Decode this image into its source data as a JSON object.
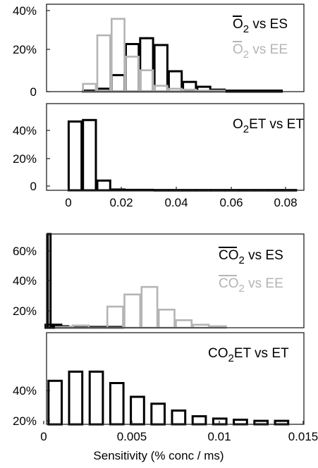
{
  "colors": {
    "black": "#000000",
    "gray": "#b4b4b4",
    "frame": "#222222"
  },
  "chart_data": [
    {
      "type": "bar",
      "ytick_labels": [
        "0",
        "20%",
        "40%"
      ],
      "ylim": [
        0,
        45
      ],
      "xlim": [
        -0.01,
        0.08
      ],
      "bin_width": 0.005,
      "show_xtick_labels": false,
      "series": [
        {
          "name": "O2 vs ES",
          "color": "black",
          "x": [
            0.005,
            0.01,
            0.015,
            0.02,
            0.025,
            0.03,
            0.035,
            0.04,
            0.045,
            0.05,
            0.055,
            0.06,
            0.065,
            0.07
          ],
          "values": [
            0.5,
            1.5,
            8.5,
            24.5,
            27.5,
            24,
            10.5,
            5,
            2.5,
            1,
            0.5,
            0.5,
            0.5,
            0.5
          ]
        },
        {
          "name": "O2 vs EE",
          "color": "gray",
          "x": [
            0.005,
            0.01,
            0.015,
            0.02,
            0.025,
            0.03,
            0.035,
            0.04,
            0.045,
            0.05
          ],
          "values": [
            4,
            29,
            37.5,
            18,
            11,
            3,
            1.5,
            1,
            0.5,
            0.5
          ]
        }
      ],
      "legend": [
        {
          "overbar": "O",
          "sub": "2",
          "rest": " vs ES",
          "color": "black"
        },
        {
          "overbar": "O",
          "sub": "2",
          "rest": " vs EE",
          "color": "gray"
        }
      ]
    },
    {
      "type": "bar",
      "ytick_labels": [
        "0",
        "20%",
        "40%"
      ],
      "ylim": [
        0,
        58
      ],
      "xlim": [
        -0.01,
        0.08
      ],
      "bin_width": 0.005,
      "show_xtick_labels": true,
      "xtick_labels": [
        "0",
        "0.02",
        "0.04",
        "0.06",
        "0.08"
      ],
      "series": [
        {
          "name": "O2ET vs ET",
          "color": "black",
          "x": [
            0.0,
            0.005,
            0.01,
            0.015,
            0.02,
            0.025,
            0.03,
            0.035,
            0.04,
            0.045,
            0.05,
            0.055,
            0.06,
            0.065,
            0.07,
            0.075
          ],
          "values": [
            46,
            47,
            6.5,
            0.5,
            0.3,
            0.3,
            0.2,
            0.2,
            0.2,
            0.2,
            0.2,
            0.2,
            0.2,
            0.2,
            0.2,
            0.2
          ]
        }
      ],
      "legend": [
        {
          "pre": "O",
          "sub": "2",
          "rest": "ET vs ET",
          "color": "black"
        }
      ]
    },
    {
      "type": "bar",
      "ytick_labels": [
        "20%",
        "40%",
        "60%"
      ],
      "ylim": [
        6,
        68
      ],
      "xlim": [
        0,
        0.015
      ],
      "bin_width": 0.001,
      "show_xtick_labels": false,
      "series": [
        {
          "name": "CO2 vs ES",
          "color": "black",
          "x": [
            0.00015,
            0.0004,
            0.0008,
            0.0014,
            0.002,
            0.003,
            0.004
          ],
          "values": [
            68,
            8,
            7,
            6.5,
            6.5,
            6.5,
            6.5
          ]
        },
        {
          "name": "CO2 vs EE",
          "color": "gray",
          "x": [
            0.001,
            0.002,
            0.003,
            0.004,
            0.005,
            0.006,
            0.007,
            0.008,
            0.009,
            0.01
          ],
          "values": [
            6.5,
            7.5,
            6,
            20,
            28,
            33,
            18,
            11,
            8,
            7
          ]
        }
      ],
      "legend": [
        {
          "overbar": "CO",
          "sub": "2",
          "rest": " vs ES",
          "color": "black"
        },
        {
          "overbar": "CO",
          "sub": "2",
          "rest": " vs EE",
          "color": "gray"
        }
      ]
    },
    {
      "type": "bar",
      "ytick_labels": [
        "20%",
        "40%"
      ],
      "ylim": [
        18,
        58
      ],
      "xlim": [
        0,
        0.015
      ],
      "bin_width": 0.00085,
      "show_xtick_labels": true,
      "xtick_labels": [
        "0",
        "0.005",
        "0.01",
        "0.015"
      ],
      "xlabel": "Sensitivity (% conc / ms)",
      "series": [
        {
          "name": "CO2ET vs ET",
          "color": "black",
          "x": [
            0.0005,
            0.0017,
            0.0029,
            0.0041,
            0.0053,
            0.0065,
            0.0077,
            0.0089,
            0.0101,
            0.0113,
            0.0125,
            0.0137
          ],
          "values": [
            37,
            41,
            41,
            36,
            30,
            27,
            24,
            21.5,
            20.5,
            20,
            19.5,
            19.5
          ]
        }
      ],
      "legend": [
        {
          "pre": "CO",
          "sub": "2",
          "rest": "ET vs ET",
          "color": "black"
        }
      ]
    }
  ]
}
